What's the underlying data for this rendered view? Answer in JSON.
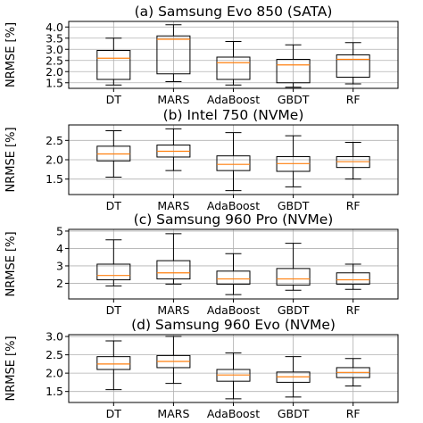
{
  "median_color": "#ff7f0e",
  "chart_data": [
    {
      "type": "boxplot",
      "title": "(a) Samsung Evo 850 (SATA)",
      "ylabel": "NRMSE [%]",
      "categories": [
        "DT",
        "MARS",
        "AdaBoost",
        "GBDT",
        "RF"
      ],
      "ylim": [
        1.25,
        4.25
      ],
      "yticks": [
        1.5,
        2.0,
        2.5,
        3.0,
        3.5,
        4.0
      ],
      "ytick_labels": [
        "1.5",
        "2.0",
        "2.5",
        "3.0",
        "3.5",
        "4.0"
      ],
      "grid": true,
      "boxes": [
        {
          "whislo": 1.4,
          "q1": 1.65,
          "med": 2.6,
          "q3": 2.95,
          "whishi": 3.5
        },
        {
          "whislo": 1.55,
          "q1": 1.9,
          "med": 3.45,
          "q3": 3.6,
          "whishi": 4.1
        },
        {
          "whislo": 1.4,
          "q1": 1.65,
          "med": 2.4,
          "q3": 2.65,
          "whishi": 3.35
        },
        {
          "whislo": 1.3,
          "q1": 1.5,
          "med": 2.3,
          "q3": 2.55,
          "whishi": 3.2
        },
        {
          "whislo": 1.45,
          "q1": 1.75,
          "med": 2.55,
          "q3": 2.75,
          "whishi": 3.3
        }
      ]
    },
    {
      "type": "boxplot",
      "title": "(b) Intel 750 (NVMe)",
      "ylabel": "NRMSE [%]",
      "categories": [
        "DT",
        "MARS",
        "AdaBoost",
        "GBDT",
        "RF"
      ],
      "ylim": [
        1.1,
        2.9
      ],
      "yticks": [
        1.5,
        2.0,
        2.5
      ],
      "ytick_labels": [
        "1.5",
        "2.0",
        "2.5"
      ],
      "grid": true,
      "boxes": [
        {
          "whislo": 1.55,
          "q1": 1.97,
          "med": 2.15,
          "q3": 2.35,
          "whishi": 2.75
        },
        {
          "whislo": 1.72,
          "q1": 2.07,
          "med": 2.22,
          "q3": 2.38,
          "whishi": 2.8
        },
        {
          "whislo": 1.2,
          "q1": 1.72,
          "med": 1.88,
          "q3": 2.1,
          "whishi": 2.7
        },
        {
          "whislo": 1.3,
          "q1": 1.7,
          "med": 1.9,
          "q3": 2.08,
          "whishi": 2.62
        },
        {
          "whislo": 1.5,
          "q1": 1.8,
          "med": 1.95,
          "q3": 2.08,
          "whishi": 2.45
        }
      ]
    },
    {
      "type": "boxplot",
      "title": "(c) Samsung 960 Pro (NVMe)",
      "ylabel": "NRMSE [%]",
      "categories": [
        "DT",
        "MARS",
        "AdaBoost",
        "GBDT",
        "RF"
      ],
      "ylim": [
        1.1,
        5.1
      ],
      "yticks": [
        2,
        3,
        4,
        5
      ],
      "ytick_labels": [
        "2",
        "3",
        "4",
        "5"
      ],
      "grid": true,
      "boxes": [
        {
          "whislo": 1.85,
          "q1": 2.2,
          "med": 2.45,
          "q3": 3.1,
          "whishi": 4.5
        },
        {
          "whislo": 1.95,
          "q1": 2.25,
          "med": 2.6,
          "q3": 3.3,
          "whishi": 4.85
        },
        {
          "whislo": 1.35,
          "q1": 1.95,
          "med": 2.25,
          "q3": 2.7,
          "whishi": 3.7
        },
        {
          "whislo": 1.6,
          "q1": 1.9,
          "med": 2.25,
          "q3": 2.85,
          "whishi": 4.3
        },
        {
          "whislo": 1.65,
          "q1": 1.95,
          "med": 2.2,
          "q3": 2.6,
          "whishi": 3.1
        }
      ]
    },
    {
      "type": "boxplot",
      "title": "(d) Samsung 960 Evo (NVMe)",
      "ylabel": "NRMSE [%]",
      "categories": [
        "DT",
        "MARS",
        "AdaBoost",
        "GBDT",
        "RF"
      ],
      "ylim": [
        1.2,
        3.05
      ],
      "yticks": [
        1.5,
        2.0,
        2.5,
        3.0
      ],
      "ytick_labels": [
        "1.5",
        "2.0",
        "2.5",
        "3.0"
      ],
      "grid": true,
      "boxes": [
        {
          "whislo": 1.55,
          "q1": 2.1,
          "med": 2.25,
          "q3": 2.45,
          "whishi": 2.88
        },
        {
          "whislo": 1.72,
          "q1": 2.15,
          "med": 2.32,
          "q3": 2.48,
          "whishi": 3.0
        },
        {
          "whislo": 1.3,
          "q1": 1.78,
          "med": 1.95,
          "q3": 2.1,
          "whishi": 2.55
        },
        {
          "whislo": 1.35,
          "q1": 1.75,
          "med": 1.9,
          "q3": 2.03,
          "whishi": 2.45
        },
        {
          "whislo": 1.65,
          "q1": 1.88,
          "med": 2.02,
          "q3": 2.15,
          "whishi": 2.4
        }
      ]
    }
  ]
}
